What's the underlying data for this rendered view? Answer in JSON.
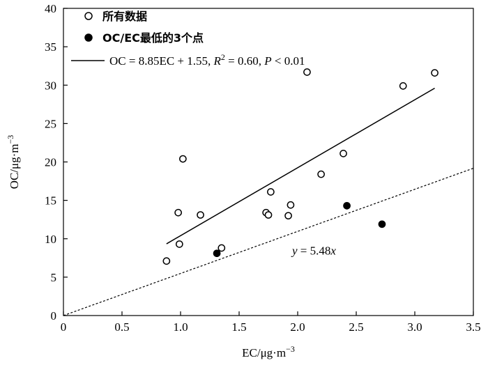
{
  "chart_data": {
    "type": "scatter",
    "xlabel": "EC/μg·m",
    "xlabel_sup": "−3",
    "ylabel": "OC/μg·m",
    "ylabel_sup": "−3",
    "xlim": [
      0,
      3.5
    ],
    "ylim": [
      0,
      40
    ],
    "x_ticks": [
      "0",
      "0.5",
      "1.0",
      "1.5",
      "2.0",
      "2.5",
      "3.0",
      "3.5"
    ],
    "y_ticks": [
      "0",
      "5",
      "10",
      "15",
      "20",
      "25",
      "30",
      "35",
      "40"
    ],
    "x_tick_values": [
      0,
      0.5,
      1.0,
      1.5,
      2.0,
      2.5,
      3.0,
      3.5
    ],
    "y_tick_values": [
      0,
      5,
      10,
      15,
      20,
      25,
      30,
      35,
      40
    ],
    "legend_position": "top-left",
    "series": [
      {
        "name": "所有数据",
        "marker": "open-circle",
        "color": "#000000",
        "points": [
          {
            "x": 0.88,
            "y": 7.1
          },
          {
            "x": 0.98,
            "y": 13.4
          },
          {
            "x": 0.99,
            "y": 9.3
          },
          {
            "x": 1.02,
            "y": 20.4
          },
          {
            "x": 1.17,
            "y": 13.1
          },
          {
            "x": 1.35,
            "y": 8.8
          },
          {
            "x": 1.73,
            "y": 13.4
          },
          {
            "x": 1.75,
            "y": 13.1
          },
          {
            "x": 1.77,
            "y": 16.1
          },
          {
            "x": 1.92,
            "y": 13.0
          },
          {
            "x": 1.94,
            "y": 14.4
          },
          {
            "x": 2.08,
            "y": 31.7
          },
          {
            "x": 2.2,
            "y": 18.4
          },
          {
            "x": 2.39,
            "y": 21.1
          },
          {
            "x": 2.9,
            "y": 29.9
          },
          {
            "x": 3.17,
            "y": 31.6
          }
        ]
      },
      {
        "name": "OC/EC最低的3个点",
        "marker": "filled-circle",
        "color": "#000000",
        "points": [
          {
            "x": 1.31,
            "y": 8.1
          },
          {
            "x": 2.42,
            "y": 14.3
          },
          {
            "x": 2.72,
            "y": 11.9
          }
        ]
      }
    ],
    "fit_line": {
      "slope": 8.85,
      "intercept": 1.55,
      "x_range": [
        0.88,
        3.17
      ],
      "legend_prefix": "OC = 8.85EC + 1.55, ",
      "r2_label": "R",
      "r2_sup": "2",
      "r2_value": " = 0.60, ",
      "p_label": "P",
      "p_value": " < 0.01"
    },
    "ratio_line": {
      "slope": 5.48,
      "x_range": [
        0,
        3.5
      ],
      "style": "dashed",
      "label_var": "y",
      "label_eq": " = 5.48",
      "label_x": "x",
      "label_at": {
        "x": 2.0,
        "y": 8.5
      }
    }
  }
}
